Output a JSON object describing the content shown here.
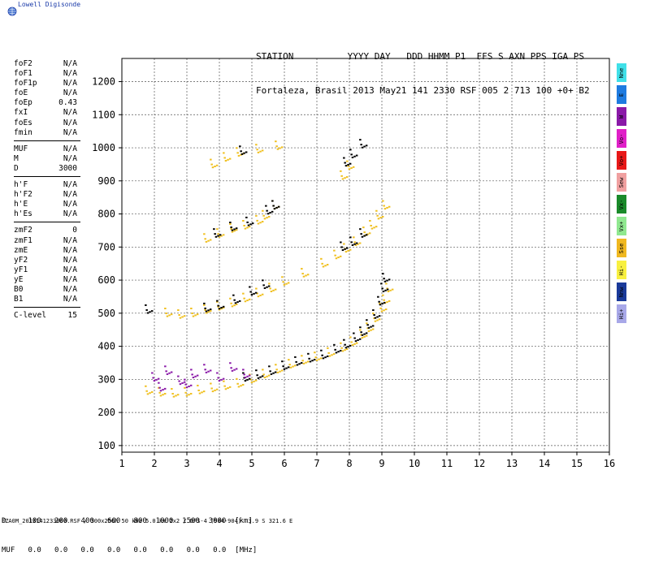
{
  "logo": {
    "text": "Lowell Digisonde"
  },
  "header": {
    "line1": "STATION          YYYY DAY   DDD HHMM P1  FFS S AXN PPS IGA PS",
    "line2": "Fortaleza, Brasil 2013 May21 141 2330 RSF 005 2 713 100 +0+ B2"
  },
  "params": [
    [
      {
        "name": "foF2",
        "value": "N/A"
      },
      {
        "name": "foF1",
        "value": "N/A"
      },
      {
        "name": "foF1p",
        "value": "N/A"
      },
      {
        "name": "foE",
        "value": "N/A"
      },
      {
        "name": "foEp",
        "value": "0.43"
      },
      {
        "name": "fxI",
        "value": "N/A"
      },
      {
        "name": "foEs",
        "value": "N/A"
      },
      {
        "name": "fmin",
        "value": "N/A"
      }
    ],
    [
      {
        "name": "MUF",
        "value": "N/A"
      },
      {
        "name": "M",
        "value": "N/A"
      },
      {
        "name": "D",
        "value": "3000"
      }
    ],
    [
      {
        "name": "h'F",
        "value": "N/A"
      },
      {
        "name": "h'F2",
        "value": "N/A"
      },
      {
        "name": "h'E",
        "value": "N/A"
      },
      {
        "name": "h'Es",
        "value": "N/A"
      }
    ],
    [
      {
        "name": "zmF2",
        "value": "0"
      },
      {
        "name": "zmF1",
        "value": "N/A"
      },
      {
        "name": "zmE",
        "value": "N/A"
      },
      {
        "name": "yF2",
        "value": "N/A"
      },
      {
        "name": "yF1",
        "value": "N/A"
      },
      {
        "name": "yE",
        "value": "N/A"
      },
      {
        "name": "B0",
        "value": "N/A"
      },
      {
        "name": "B1",
        "value": "N/A"
      }
    ],
    [
      {
        "name": "C-level",
        "value": "15"
      }
    ]
  ],
  "legend": [
    {
      "label": "Nne",
      "color": "#40e0e8"
    },
    {
      "label": "E",
      "color": "#1e7be0"
    },
    {
      "label": "W",
      "color": "#8a1aa8"
    },
    {
      "label": "Vo-",
      "color": "#e020c8"
    },
    {
      "label": "Vo+",
      "color": "#e81818"
    },
    {
      "label": "Sew",
      "color": "#f0a0a0"
    },
    {
      "label": "Vx-",
      "color": "#1a8a2a"
    },
    {
      "label": "Vx+",
      "color": "#90e890"
    },
    {
      "label": "Sse",
      "color": "#f0b820"
    },
    {
      "label": "Hi-",
      "color": "#f8f040"
    },
    {
      "label": "Nnw",
      "color": "#1a3a9a"
    },
    {
      "label": "Hi+",
      "color": "#a8a8e8"
    }
  ],
  "footer": {
    "line1": "D     100   200   400   600   800  1000  1500  3000  [km]",
    "line2": "MUF   0.0   0.0   0.0   0.0   0.0   0.0   0.0   0.0  [MHz]",
    "info": "FZA0M_2013141233000.RSF / 300x256h 50 kHz 5.0 km 2x2 / DPS-4 (904-904)  3.9 S 321.6 E"
  },
  "chart_data": {
    "type": "scatter",
    "xlim": [
      1,
      16
    ],
    "ylim": [
      80,
      1270
    ],
    "x_ticks": [
      1,
      2,
      3,
      4,
      5,
      6,
      7,
      8,
      9,
      10,
      11,
      12,
      13,
      14,
      15,
      16
    ],
    "y_ticks": [
      100,
      200,
      300,
      400,
      500,
      600,
      700,
      800,
      900,
      1000,
      1100,
      1200
    ],
    "grid": true,
    "series": [
      {
        "trace": "F-trace",
        "color": "#f0c020",
        "points": [
          [
            1.8,
            270
          ],
          [
            2.2,
            265
          ],
          [
            2.6,
            262
          ],
          [
            3.0,
            265
          ],
          [
            3.4,
            272
          ],
          [
            3.8,
            278
          ],
          [
            4.2,
            285
          ],
          [
            4.6,
            292
          ],
          [
            5.0,
            305
          ],
          [
            5.4,
            320
          ],
          [
            5.8,
            335
          ],
          [
            6.2,
            350
          ],
          [
            6.6,
            362
          ],
          [
            7.0,
            372
          ],
          [
            7.4,
            385
          ],
          [
            7.8,
            400
          ],
          [
            8.1,
            418
          ],
          [
            8.4,
            440
          ],
          [
            8.6,
            460
          ],
          [
            8.8,
            490
          ],
          [
            9.0,
            520
          ],
          [
            9.1,
            545
          ],
          [
            9.2,
            580
          ]
        ]
      },
      {
        "trace": "F-trace-black",
        "color": "#000000",
        "points": [
          [
            4.8,
            310
          ],
          [
            5.2,
            318
          ],
          [
            5.6,
            330
          ],
          [
            6.0,
            345
          ],
          [
            6.4,
            358
          ],
          [
            6.8,
            368
          ],
          [
            7.2,
            378
          ],
          [
            7.6,
            395
          ],
          [
            7.9,
            410
          ],
          [
            8.2,
            430
          ],
          [
            8.4,
            448
          ],
          [
            8.6,
            470
          ],
          [
            8.8,
            500
          ],
          [
            8.95,
            540
          ],
          [
            9.05,
            580
          ],
          [
            9.1,
            610
          ]
        ]
      },
      {
        "trace": "F-trace-2hop",
        "color": "#f0c020",
        "points": [
          [
            2.4,
            505
          ],
          [
            2.8,
            500
          ],
          [
            3.2,
            505
          ],
          [
            3.6,
            515
          ],
          [
            4.0,
            525
          ],
          [
            4.4,
            535
          ],
          [
            4.8,
            550
          ],
          [
            5.2,
            565
          ],
          [
            5.6,
            580
          ],
          [
            6.0,
            600
          ],
          [
            6.6,
            625
          ],
          [
            7.2,
            655
          ],
          [
            7.6,
            680
          ],
          [
            7.9,
            700
          ],
          [
            8.2,
            720
          ],
          [
            8.5,
            750
          ],
          [
            8.7,
            770
          ],
          [
            8.9,
            800
          ],
          [
            9.1,
            830
          ]
        ]
      },
      {
        "trace": "F-trace-2hop-black",
        "color": "#000000",
        "points": [
          [
            1.8,
            515
          ],
          [
            3.6,
            520
          ],
          [
            4.0,
            528
          ],
          [
            4.5,
            545
          ],
          [
            5.0,
            570
          ],
          [
            5.4,
            590
          ],
          [
            7.8,
            705
          ],
          [
            8.1,
            720
          ],
          [
            8.4,
            745
          ]
        ]
      },
      {
        "trace": "F-trace-3hop",
        "color": "#f0c020",
        "points": [
          [
            3.6,
            730
          ],
          [
            4.0,
            745
          ],
          [
            4.4,
            760
          ],
          [
            4.8,
            770
          ],
          [
            5.2,
            785
          ],
          [
            5.4,
            800
          ],
          [
            5.7,
            830
          ],
          [
            3.8,
            955
          ],
          [
            4.2,
            975
          ],
          [
            4.6,
            990
          ],
          [
            5.2,
            1000
          ],
          [
            5.8,
            1010
          ],
          [
            7.8,
            920
          ],
          [
            8.0,
            950
          ]
        ]
      },
      {
        "trace": "F-trace-3hop-black",
        "color": "#000000",
        "points": [
          [
            3.9,
            745
          ],
          [
            4.4,
            765
          ],
          [
            4.9,
            780
          ],
          [
            5.5,
            815
          ],
          [
            5.7,
            830
          ],
          [
            4.7,
            995
          ],
          [
            7.9,
            960
          ],
          [
            8.1,
            985
          ],
          [
            8.4,
            1015
          ]
        ]
      },
      {
        "trace": "spread-F",
        "color": "#8a1aa8",
        "points": [
          [
            2.0,
            310
          ],
          [
            2.4,
            330
          ],
          [
            2.8,
            300
          ],
          [
            3.2,
            320
          ],
          [
            3.6,
            335
          ],
          [
            4.0,
            310
          ],
          [
            4.4,
            340
          ],
          [
            4.8,
            320
          ],
          [
            2.2,
            280
          ],
          [
            3.0,
            290
          ]
        ]
      }
    ]
  }
}
